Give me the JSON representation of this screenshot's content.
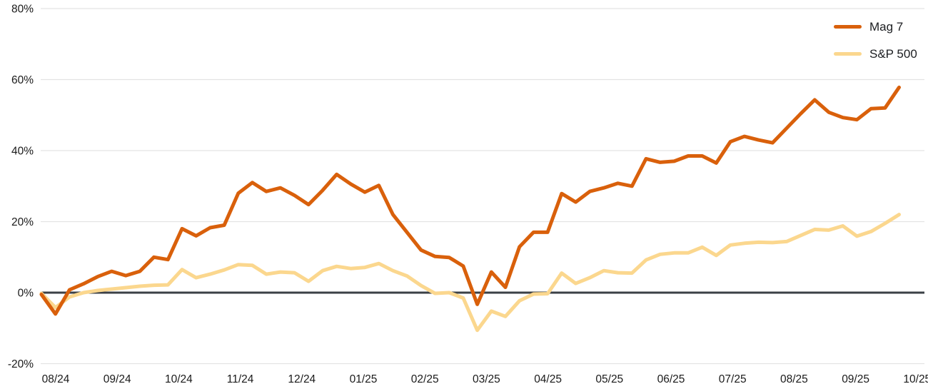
{
  "chart_data": {
    "type": "line",
    "title": "",
    "xlabel": "",
    "ylabel": "",
    "unit": "%",
    "ylim": [
      -20,
      80
    ],
    "grid": "horizontal",
    "legend_position": "top-right",
    "style": {
      "background": "#FFFFFF",
      "grid_color": "#E3E3E3",
      "zero_line_color": "#3B4046",
      "text_color": "#1A1A1A"
    },
    "x_labels": [
      "08/24",
      "09/24",
      "10/24",
      "11/24",
      "12/24",
      "01/25",
      "02/25",
      "03/25",
      "04/25",
      "05/25",
      "06/25",
      "07/25",
      "08/25",
      "09/25",
      "10/25"
    ],
    "y_ticks": [
      {
        "value": 80,
        "label": "80%"
      },
      {
        "value": 60,
        "label": "60%"
      },
      {
        "value": 40,
        "label": "40%"
      },
      {
        "value": 20,
        "label": "20%"
      },
      {
        "value": 0,
        "label": "0%"
      },
      {
        "value": -20,
        "label": "-20%"
      }
    ],
    "series": [
      {
        "name": "S&P 500",
        "color": "#FBD78E",
        "values": [
          -0.2,
          -4.2,
          -1.2,
          0,
          0.6,
          1.0,
          1.4,
          1.8,
          2.1,
          2.2,
          6.5,
          4.2,
          5.2,
          6.4,
          7.9,
          7.7,
          5.2,
          5.8,
          5.6,
          3.2,
          6.2,
          7.4,
          6.8,
          7.1,
          8.2,
          6.2,
          4.7,
          2.0,
          -0.2,
          0,
          -1.5,
          -10.6,
          -5.2,
          -6.7,
          -2.3,
          -0.4,
          -0.3,
          5.5,
          2.6,
          4.2,
          6.2,
          5.6,
          5.5,
          9.2,
          10.8,
          11.2,
          11.2,
          12.8,
          10.5,
          13.4,
          13.9,
          14.2,
          14.1,
          14.4,
          16.1,
          17.8,
          17.6,
          18.8,
          15.9,
          17.2,
          19.5,
          22.0
        ]
      },
      {
        "name": "Mag 7",
        "color": "#D9600B",
        "values": [
          -0.5,
          -6.0,
          0.8,
          2.5,
          4.5,
          6.0,
          4.8,
          6.0,
          10.0,
          9.3,
          18.0,
          16.0,
          18.3,
          19.0,
          28.0,
          31.0,
          28.5,
          29.5,
          27.4,
          24.8,
          28.8,
          33.3,
          30.6,
          28.3,
          30.2,
          22.0,
          17.0,
          12.0,
          10.2,
          9.9,
          7.5,
          -3.3,
          5.8,
          1.5,
          12.9,
          17.0,
          17.0,
          27.9,
          25.5,
          28.5,
          29.5,
          30.8,
          30.0,
          37.7,
          36.7,
          37.0,
          38.5,
          38.5,
          36.5,
          42.5,
          44.0,
          43.0,
          42.2,
          46.3,
          50.4,
          54.3,
          50.8,
          49.3,
          48.7,
          51.8,
          52.0,
          57.8
        ]
      }
    ],
    "legend_order": [
      "Mag 7",
      "S&P 500"
    ]
  }
}
